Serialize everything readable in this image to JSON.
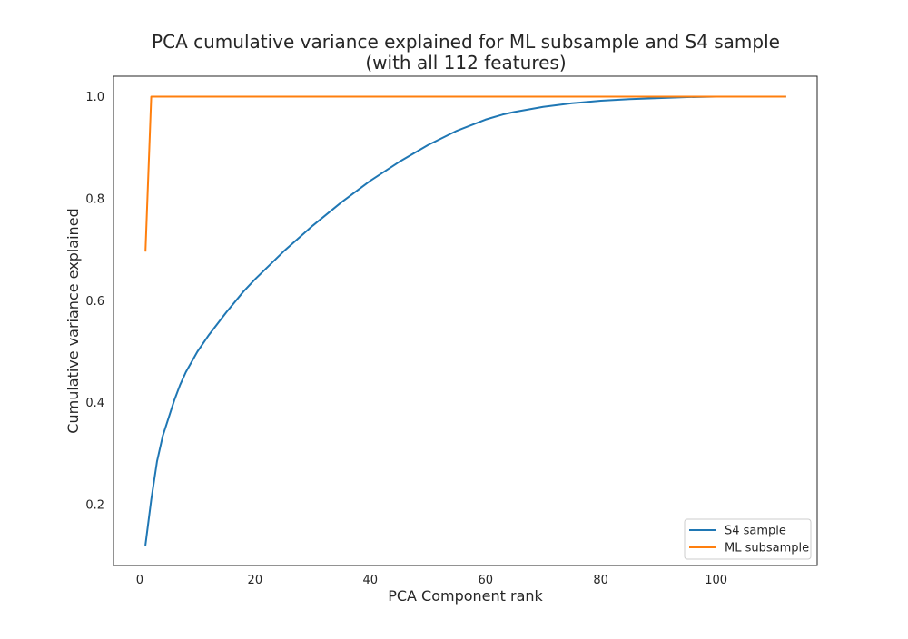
{
  "chart_data": {
    "type": "line",
    "title": "PCA cumulative variance explained for ML subsample and S4 sample",
    "subtitle": "(with all 112 features)",
    "xlabel": "PCA Component rank",
    "ylabel": "Cumulative variance explained",
    "xlim": [
      -4.55,
      117.55
    ],
    "ylim": [
      0.081,
      1.04
    ],
    "xticks": [
      0,
      20,
      40,
      60,
      80,
      100
    ],
    "yticks": [
      0.2,
      0.4,
      0.6,
      0.8,
      1.0
    ],
    "xtick_labels": [
      "0",
      "20",
      "40",
      "60",
      "80",
      "100"
    ],
    "ytick_labels": [
      "0.2",
      "0.4",
      "0.6",
      "0.8",
      "1.0"
    ],
    "grid": false,
    "legend_position": "lower-right",
    "series": [
      {
        "name": "S4 sample",
        "color": "#1f77b4",
        "x": [
          1,
          2,
          3,
          4,
          5,
          6,
          7,
          8,
          10,
          12,
          15,
          18,
          20,
          25,
          30,
          35,
          40,
          45,
          50,
          55,
          60,
          63,
          65,
          70,
          75,
          80,
          85,
          90,
          95,
          100,
          105,
          112
        ],
        "y": [
          0.122,
          0.21,
          0.285,
          0.335,
          0.37,
          0.405,
          0.435,
          0.46,
          0.5,
          0.533,
          0.577,
          0.618,
          0.642,
          0.697,
          0.747,
          0.793,
          0.835,
          0.872,
          0.905,
          0.933,
          0.955,
          0.965,
          0.97,
          0.98,
          0.987,
          0.992,
          0.995,
          0.997,
          0.999,
          1.0,
          1.0,
          1.0
        ]
      },
      {
        "name": "ML subsample",
        "color": "#ff7f0e",
        "x": [
          1,
          2,
          112
        ],
        "y": [
          0.698,
          1.0,
          1.0
        ]
      }
    ]
  }
}
